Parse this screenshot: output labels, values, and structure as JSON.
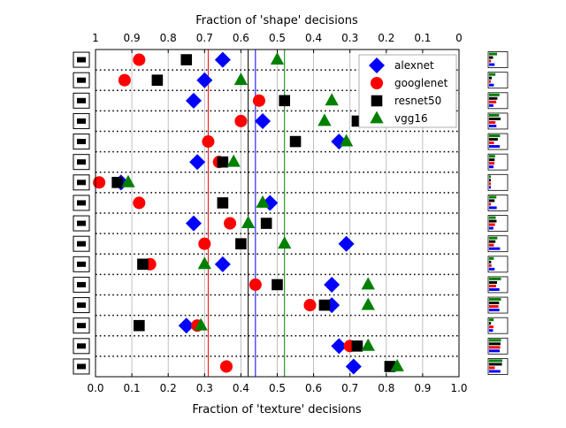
{
  "chart_data": {
    "type": "scatter",
    "xlabel": "Fraction of 'texture' decisions",
    "x2label": "Fraction of 'shape' decisions",
    "xlim": [
      0.0,
      1.0
    ],
    "x_ticks": [
      "0.0",
      "0.1",
      "0.2",
      "0.3",
      "0.4",
      "0.5",
      "0.6",
      "0.7",
      "0.8",
      "0.9",
      "1.0"
    ],
    "x2_ticks": [
      "1",
      "0.9",
      "0.8",
      "0.7",
      "0.6",
      "0.5",
      "0.4",
      "0.3",
      "0.2",
      "0.1",
      "0"
    ],
    "grid": "vertical",
    "legend_position": "top-right",
    "categories": [
      "truck",
      "bottle",
      "knife",
      "keyboard",
      "elephant",
      "dog",
      "clock",
      "chair",
      "cat",
      "car",
      "bottle",
      "boat",
      "bird",
      "bicycle",
      "bear",
      "airplane"
    ],
    "series": [
      {
        "name": "alexnet",
        "marker": "diamond",
        "color": "#0000ff",
        "values": [
          0.35,
          0.3,
          0.27,
          0.46,
          0.67,
          0.28,
          0.07,
          0.48,
          0.27,
          0.69,
          0.35,
          0.65,
          0.65,
          0.25,
          0.67,
          0.71
        ],
        "mean": 0.44
      },
      {
        "name": "googlenet",
        "marker": "circle",
        "color": "#ff0000",
        "values": [
          0.12,
          0.08,
          0.45,
          0.4,
          0.31,
          0.34,
          0.01,
          0.12,
          0.37,
          0.3,
          0.15,
          0.44,
          0.59,
          0.28,
          0.7,
          0.36
        ],
        "mean": 0.31
      },
      {
        "name": "resnet50",
        "marker": "square",
        "color": "#000000",
        "values": [
          0.25,
          0.17,
          0.52,
          0.72,
          0.55,
          0.35,
          0.06,
          0.35,
          0.47,
          0.4,
          0.13,
          0.5,
          0.63,
          0.12,
          0.72,
          0.81
        ],
        "mean": 0.42
      },
      {
        "name": "vgg16",
        "marker": "triangle",
        "color": "#008000",
        "values": [
          0.5,
          0.4,
          0.65,
          0.63,
          0.69,
          0.38,
          0.09,
          0.46,
          0.42,
          0.52,
          0.3,
          0.75,
          0.75,
          0.29,
          0.75,
          0.83
        ],
        "mean": 0.52
      }
    ]
  }
}
